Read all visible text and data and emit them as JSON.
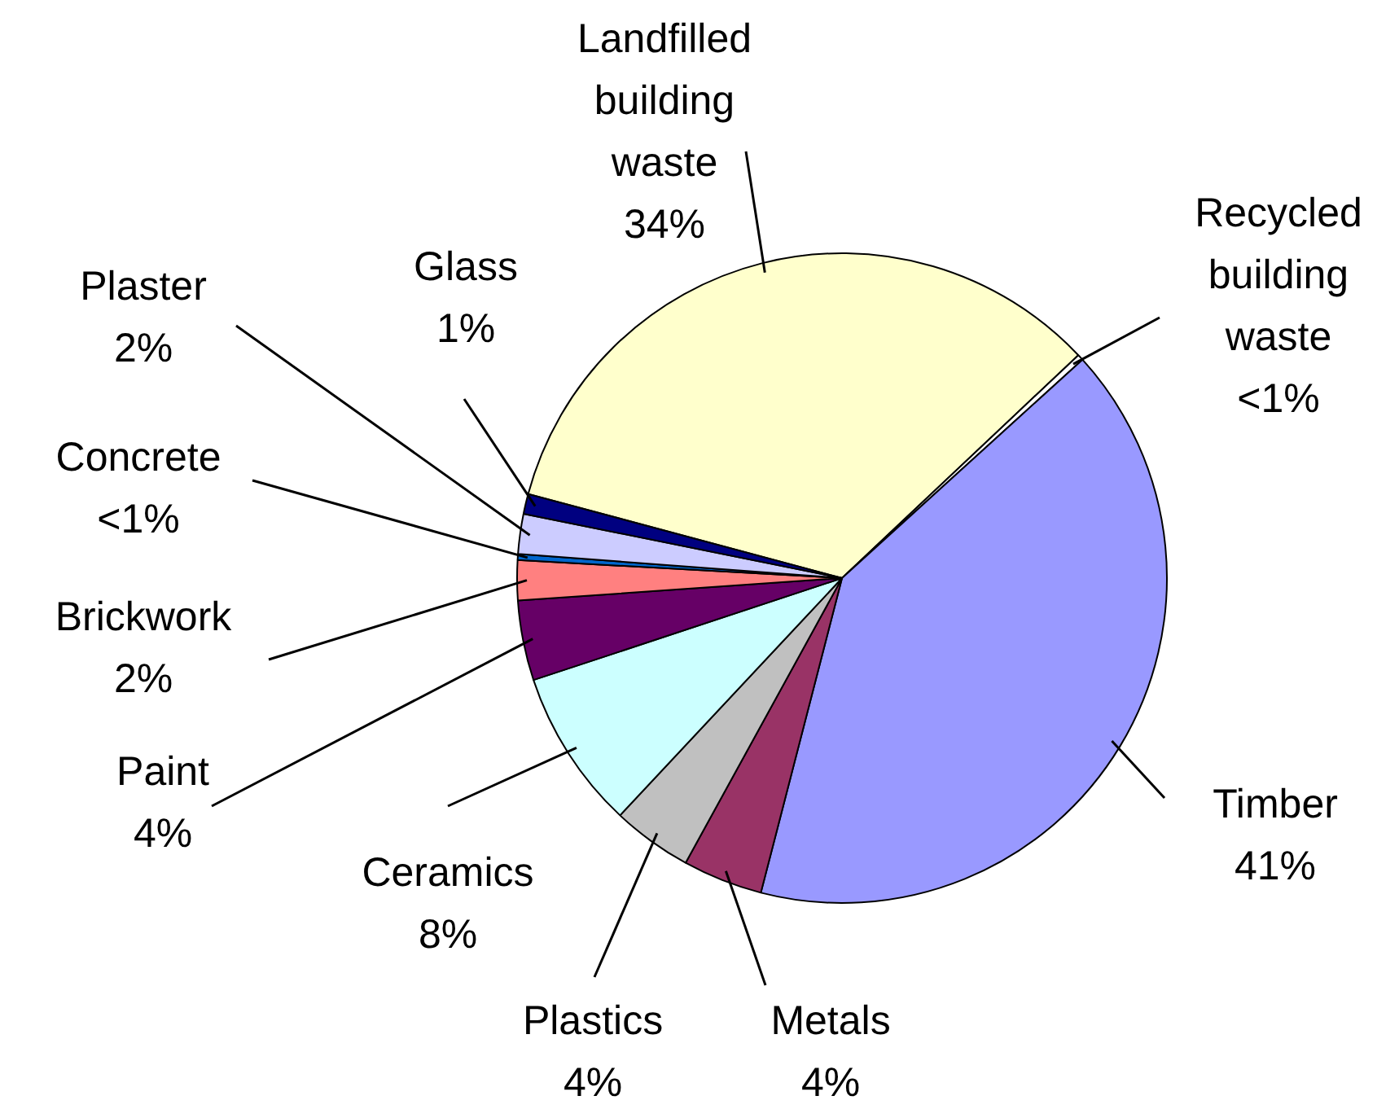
{
  "chart_data": {
    "type": "pie",
    "categories": [
      "Landfilled building waste",
      "Recycled building waste",
      "Timber",
      "Metals",
      "Plastics",
      "Ceramics",
      "Paint",
      "Brickwork",
      "Concrete",
      "Plaster",
      "Glass"
    ],
    "values": [
      34,
      0.3,
      41,
      4,
      4,
      8,
      4,
      2,
      0.3,
      2,
      1
    ],
    "value_labels": [
      "34%",
      "<1%",
      "41%",
      "4%",
      "4%",
      "8%",
      "4%",
      "2%",
      "<1%",
      "2%",
      "1%"
    ],
    "colors": [
      "#ffffcc",
      "#ffffff",
      "#9999ff",
      "#993366",
      "#c0c0c0",
      "#ccffff",
      "#660066",
      "#ff8080",
      "#0066cc",
      "#ccccff",
      "#000080"
    ]
  }
}
